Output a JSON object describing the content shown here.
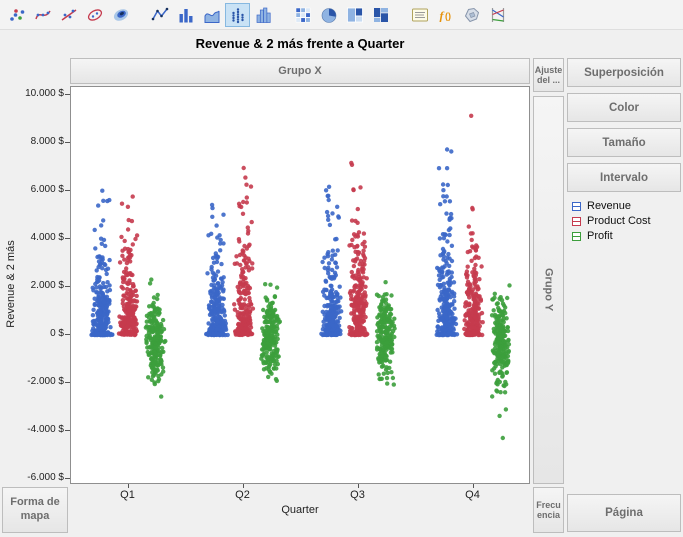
{
  "title": "Revenue & 2 más frente a Quarter",
  "toolbar": {
    "selected": "jitter-points",
    "groups": [
      {
        "items": [
          "points",
          "smoother",
          "line-of-fit",
          "ellipse",
          "contour"
        ]
      },
      {
        "items": [
          "line-chart",
          "bar-chart",
          "area-chart",
          "jitter-points",
          "histogram"
        ]
      },
      {
        "items": [
          "heatmap",
          "pie-chart",
          "treemap",
          "mosaic"
        ]
      },
      {
        "items": [
          "caption-box",
          "formula",
          "map-shapes",
          "parallel-plot"
        ]
      }
    ]
  },
  "drop_zones": {
    "group_x": "Grupo X",
    "fit": "Ajuste del ...",
    "group_y": "Grupo Y",
    "map_shape": "Forma de mapa",
    "frequency": "Frecuencia",
    "page": "Página"
  },
  "right_panel": {
    "buttons": [
      "Superposición",
      "Color",
      "Tamaño",
      "Intervalo"
    ]
  },
  "legend": {
    "items": [
      {
        "label": "Revenue",
        "color": "#3B67C8"
      },
      {
        "label": "Product Cost",
        "color": "#C53B4E"
      },
      {
        "label": "Profit",
        "color": "#3C9E3C"
      }
    ]
  },
  "chart_data": {
    "type": "scatter",
    "title": "Revenue & 2 más frente a Quarter",
    "xlabel": "Quarter",
    "ylabel": "Revenue & 2 más",
    "categories": [
      "Q1",
      "Q2",
      "Q3",
      "Q4"
    ],
    "ylim": [
      -6000,
      10000
    ],
    "ytick_step": 2000,
    "grid": false,
    "legend_position": "right",
    "yticks": [
      {
        "value": 10000,
        "label": "10.000 $"
      },
      {
        "value": 8000,
        "label": "8.000 $"
      },
      {
        "value": 6000,
        "label": "6.000 $"
      },
      {
        "value": 4000,
        "label": "4.000 $"
      },
      {
        "value": 2000,
        "label": "2.000 $"
      },
      {
        "value": 0,
        "label": "0 $"
      },
      {
        "value": -2000,
        "label": "-2.000 $"
      },
      {
        "value": -4000,
        "label": "-4.000 $"
      },
      {
        "value": -6000,
        "label": "-6.000 $"
      }
    ],
    "series": [
      {
        "name": "Revenue",
        "color": "#3B67C8",
        "dist": "exp",
        "quarters": [
          {
            "count": 230,
            "scale": 1450,
            "max": 6100,
            "zero_row": 45,
            "outliers": []
          },
          {
            "count": 230,
            "scale": 1450,
            "max": 6300,
            "zero_row": 45,
            "outliers": []
          },
          {
            "count": 230,
            "scale": 1500,
            "max": 6600,
            "zero_row": 45,
            "outliers": []
          },
          {
            "count": 240,
            "scale": 1650,
            "max": 7800,
            "zero_row": 45,
            "outliers": []
          }
        ]
      },
      {
        "name": "Product Cost",
        "color": "#C53B4E",
        "dist": "exp",
        "quarters": [
          {
            "count": 225,
            "scale": 1500,
            "max": 6450,
            "zero_row": 18,
            "outliers": []
          },
          {
            "count": 225,
            "scale": 1550,
            "max": 7000,
            "zero_row": 18,
            "outliers": []
          },
          {
            "count": 225,
            "scale": 1600,
            "max": 7500,
            "zero_row": 18,
            "outliers": []
          },
          {
            "count": 225,
            "scale": 1500,
            "max": 6500,
            "zero_row": 18,
            "outliers": [
              9150
            ]
          }
        ]
      },
      {
        "name": "Profit",
        "color": "#3C9E3C",
        "dist": "normal",
        "quarters": [
          {
            "count": 215,
            "center": -120,
            "sd": 820,
            "min": -2750,
            "max": 2600,
            "outliers": []
          },
          {
            "count": 215,
            "center": -120,
            "sd": 780,
            "min": -2600,
            "max": 2500,
            "outliers": []
          },
          {
            "count": 215,
            "center": -60,
            "sd": 880,
            "min": -2950,
            "max": 3100,
            "outliers": []
          },
          {
            "count": 220,
            "center": -160,
            "sd": 920,
            "min": -3400,
            "max": 2600,
            "outliers": [
              -4290,
              -3370
            ]
          }
        ]
      }
    ]
  }
}
